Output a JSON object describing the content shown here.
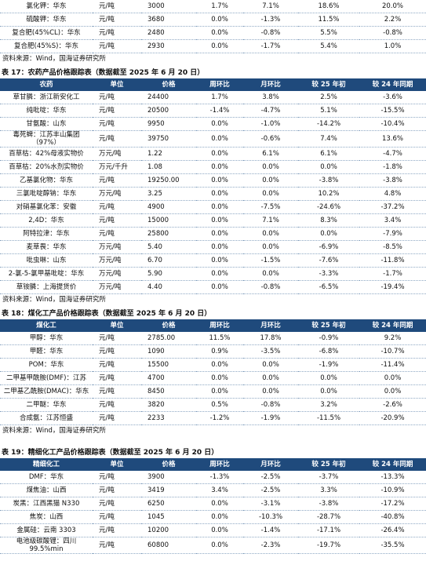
{
  "top": {
    "rows": [
      [
        "氯化钾：华东",
        "元/吨",
        "3000",
        "1.7%",
        "7.1%",
        "18.6%",
        "20.0%"
      ],
      [
        "硫酸钾：华东",
        "元/吨",
        "3680",
        "0.0%",
        "-1.3%",
        "11.5%",
        "2.2%"
      ],
      [
        "复合肥(45%CL)：华东",
        "元/吨",
        "2480",
        "0.0%",
        "-0.8%",
        "5.5%",
        "-0.8%"
      ],
      [
        "复合肥(45%S)：华东",
        "元/吨",
        "2930",
        "0.0%",
        "-1.7%",
        "5.4%",
        "1.0%"
      ]
    ],
    "source": "资料来源：Wind，国海证券研究所"
  },
  "tables": [
    {
      "title": "表 17：农药产品价格跟踪表（数据截至 2025 年 6 月 20 日）",
      "header": [
        "农药",
        "单位",
        "价格",
        "周环比",
        "月环比",
        "较 25 年初",
        "较 24 年同期"
      ],
      "rows": [
        [
          "草甘膦：浙江新安化工",
          "元/吨",
          "24400",
          "1.7%",
          "3.8%",
          "2.5%",
          "-3.6%"
        ],
        [
          "纯吡啶：华东",
          "元/吨",
          "20500",
          "-1.4%",
          "-4.7%",
          "5.1%",
          "-15.5%"
        ],
        [
          "甘氨酸：山东",
          "元/吨",
          "9950",
          "0.0%",
          "-1.0%",
          "-14.2%",
          "-10.4%"
        ],
        [
          "毒死蜱：江苏丰山集团（97%）",
          "元/吨",
          "39750",
          "0.0%",
          "-0.6%",
          "7.4%",
          "13.6%"
        ],
        [
          "百草枯：42%母液实物价",
          "万元/吨",
          "1.22",
          "0.0%",
          "6.1%",
          "6.1%",
          "-4.7%"
        ],
        [
          "百草枯：20%水剂实物价",
          "万元/千升",
          "1.08",
          "0.0%",
          "0.0%",
          "0.0%",
          "-1.8%"
        ],
        [
          "乙基氯化物：华东",
          "元/吨",
          "19250.00",
          "0.0%",
          "0.0%",
          "-3.8%",
          "-3.8%"
        ],
        [
          "三氯吡啶醇钠：华东",
          "万元/吨",
          "3.25",
          "0.0%",
          "0.0%",
          "10.2%",
          "4.8%"
        ],
        [
          "对硝基氯化苯：安徽",
          "元/吨",
          "4900",
          "0.0%",
          "-7.5%",
          "-24.6%",
          "-37.2%"
        ],
        [
          "2,4D：华东",
          "元/吨",
          "15000",
          "0.0%",
          "7.1%",
          "8.3%",
          "3.4%"
        ],
        [
          "阿特拉津：华东",
          "元/吨",
          "25800",
          "0.0%",
          "0.0%",
          "0.0%",
          "-7.9%"
        ],
        [
          "麦草畏：华东",
          "万元/吨",
          "5.40",
          "0.0%",
          "0.0%",
          "-6.9%",
          "-8.5%"
        ],
        [
          "吡虫啉：山东",
          "万元/吨",
          "6.70",
          "0.0%",
          "-1.5%",
          "-7.6%",
          "-11.8%"
        ],
        [
          "2-氯-5-氯甲基吡啶：华东",
          "万元/吨",
          "5.90",
          "0.0%",
          "0.0%",
          "-3.3%",
          "-1.7%"
        ],
        [
          "草铵膦：上海提货价",
          "万元/吨",
          "4.40",
          "0.0%",
          "-0.8%",
          "-6.5%",
          "-19.4%"
        ]
      ],
      "source": "资料来源：Wind，国海证券研究所"
    },
    {
      "title": "表 18：煤化工产品价格跟踪表（数据截至 2025 年 6 月 20 日）",
      "header": [
        "煤化工",
        "单位",
        "价格",
        "周环比",
        "月环比",
        "较 25 年初",
        "较 24 年同期"
      ],
      "rows": [
        [
          "甲醇：华东",
          "元/吨",
          "2785.00",
          "11.5%",
          "17.8%",
          "-0.9%",
          "9.2%"
        ],
        [
          "甲醛：华东",
          "元/吨",
          "1090",
          "0.9%",
          "-3.5%",
          "-6.8%",
          "-10.7%"
        ],
        [
          "POM：华东",
          "元/吨",
          "15500",
          "0.0%",
          "0.0%",
          "-1.9%",
          "-11.4%"
        ],
        [
          "二甲基甲酰胺(DMF)：江苏",
          "元/吨",
          "4700",
          "0.0%",
          "0.0%",
          "0.0%",
          "0.0%"
        ],
        [
          "二甲基乙酰胺(DMAC)：华东",
          "元/吨",
          "8450",
          "0.0%",
          "0.0%",
          "0.0%",
          "0.0%"
        ],
        [
          "二甲醚：华东",
          "元/吨",
          "3820",
          "0.5%",
          "-0.8%",
          "3.2%",
          "-2.6%"
        ],
        [
          "合成氨：江苏恒盛",
          "元/吨",
          "2233",
          "-1.2%",
          "-1.9%",
          "-11.5%",
          "-20.9%"
        ]
      ],
      "source": "资料来源：Wind，国海证券研究所"
    },
    {
      "title": "表 19：精细化工产品价格跟踪表（数据截至 2025 年 6 月 20 日）",
      "header": [
        "精细化工",
        "单位",
        "价格",
        "周环比",
        "月环比",
        "较 25 年初",
        "较 24 年同期"
      ],
      "rows": [
        [
          "DMF：华东",
          "元/吨",
          "3900",
          "-1.3%",
          "-2.5%",
          "-3.7%",
          "-13.3%"
        ],
        [
          "煤焦油：山西",
          "元/吨",
          "3419",
          "3.4%",
          "-2.5%",
          "3.3%",
          "-10.9%"
        ],
        [
          "炭黑：江西黑猫 N330",
          "元/吨",
          "6250",
          "0.0%",
          "-3.1%",
          "-3.8%",
          "-17.2%"
        ],
        [
          "焦炭：山西",
          "元/吨",
          "1045",
          "0.0%",
          "-10.3%",
          "-28.7%",
          "-40.8%"
        ],
        [
          "金属硅：云南 3303",
          "元/吨",
          "10200",
          "0.0%",
          "-1.4%",
          "-17.1%",
          "-26.4%"
        ],
        [
          "电池级碳酸锂：四川 99.5%min",
          "元/吨",
          "60800",
          "0.0%",
          "-2.3%",
          "-19.7%",
          "-35.5%"
        ]
      ]
    }
  ]
}
